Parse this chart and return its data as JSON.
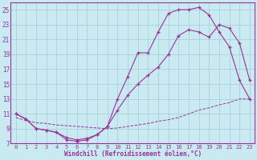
{
  "xlabel": "Windchill (Refroidissement éolien,°C)",
  "xlim": [
    -0.5,
    23.5
  ],
  "ylim": [
    7,
    26
  ],
  "xticks": [
    0,
    1,
    2,
    3,
    4,
    5,
    6,
    7,
    8,
    9,
    10,
    11,
    12,
    13,
    14,
    15,
    16,
    17,
    18,
    19,
    20,
    21,
    22,
    23
  ],
  "yticks": [
    7,
    9,
    11,
    13,
    15,
    17,
    19,
    21,
    23,
    25
  ],
  "bg_color": "#c8eaf0",
  "grid_color": "#a8d0dc",
  "line_color": "#993399",
  "line1_x": [
    0,
    1,
    2,
    3,
    4,
    5,
    6,
    7,
    8,
    9,
    10,
    11,
    12,
    13,
    14,
    15,
    16,
    17,
    18,
    19,
    20,
    21,
    22,
    23
  ],
  "line1_y": [
    11,
    10.3,
    9.0,
    8.8,
    8.5,
    7.5,
    7.3,
    7.5,
    8.2,
    9.3,
    13.0,
    16.0,
    19.2,
    19.2,
    22.0,
    24.5,
    25.0,
    25.0,
    25.3,
    24.3,
    22.0,
    20.0,
    15.5,
    13.0
  ],
  "line2_x": [
    0,
    1,
    2,
    3,
    4,
    5,
    6,
    7,
    8,
    9,
    10,
    11,
    12,
    13,
    14,
    15,
    16,
    17,
    18,
    19,
    20,
    21,
    22,
    23
  ],
  "line2_y": [
    11,
    10.3,
    9.0,
    8.8,
    8.5,
    7.8,
    7.5,
    7.7,
    8.2,
    9.3,
    11.5,
    13.5,
    15.0,
    16.2,
    17.3,
    19.0,
    21.5,
    22.3,
    22.0,
    21.3,
    23.0,
    22.5,
    20.5,
    15.5
  ],
  "line3_x": [
    0,
    1,
    2,
    3,
    4,
    5,
    6,
    7,
    8,
    9,
    10,
    11,
    12,
    13,
    14,
    15,
    16,
    17,
    18,
    19,
    20,
    21,
    22,
    23
  ],
  "line3_y": [
    10.5,
    10.1,
    9.8,
    9.7,
    9.5,
    9.4,
    9.3,
    9.2,
    9.1,
    9.0,
    9.1,
    9.3,
    9.5,
    9.7,
    10.0,
    10.2,
    10.5,
    11.0,
    11.5,
    11.8,
    12.2,
    12.5,
    13.0,
    13.0
  ]
}
